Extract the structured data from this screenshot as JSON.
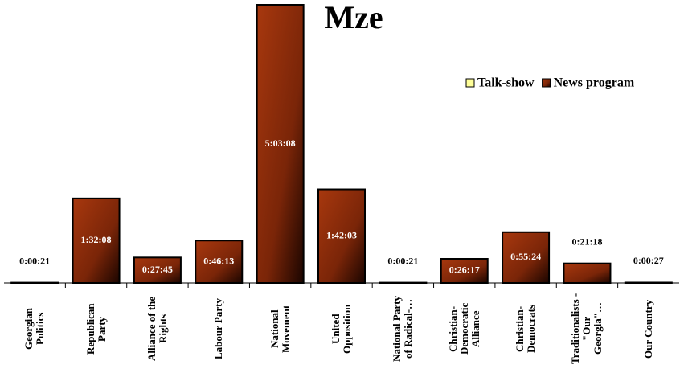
{
  "chart_data": {
    "type": "bar",
    "title": "Mze",
    "categories": [
      "Georgian Politics",
      "Republican Party",
      "Alliance of the Rights",
      "Labour Party",
      "National Movement",
      "United Opposition",
      "National Party of Radical-…",
      "Christian-Democratic Alliance",
      "Christian-Democrats",
      "Traditionalists - \"Our Georgia\"…",
      "Our Country"
    ],
    "series": [
      {
        "name": "Talk-show",
        "color": "#ffff99",
        "values": [
          0,
          0,
          0,
          0,
          0,
          0,
          0,
          0,
          0,
          0,
          0
        ]
      },
      {
        "name": "News program",
        "color": "#993300",
        "values": [
          21,
          5528,
          1665,
          2773,
          18188,
          6123,
          21,
          1577,
          3324,
          1278,
          27
        ],
        "value_labels": [
          "0:00:21",
          "1:32:08",
          "0:27:45",
          "0:46:13",
          "5:03:08",
          "1:42:03",
          "0:00:21",
          "0:26:17",
          "0:55:24",
          "0:21:18",
          "0:00:27"
        ]
      }
    ],
    "legend": "top-right"
  }
}
